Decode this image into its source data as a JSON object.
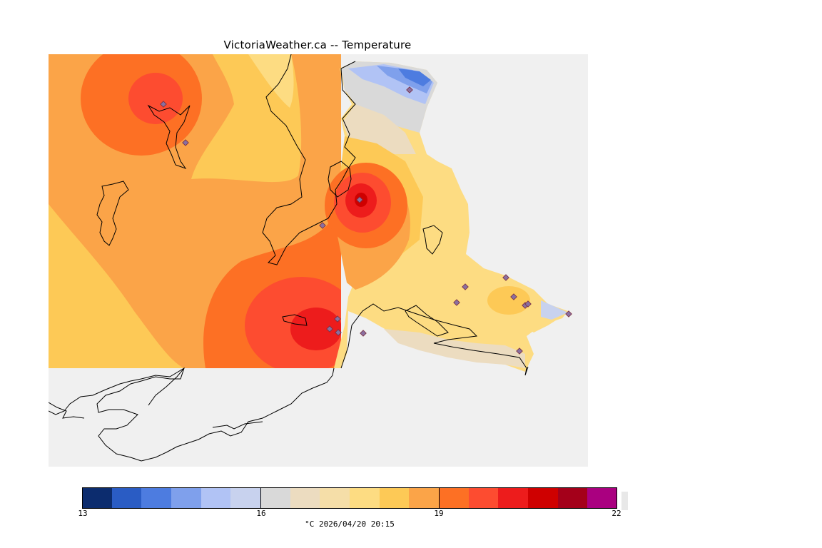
{
  "title": "VictoriaWeather.ca -- Temperature",
  "colorbar": {
    "min": 13,
    "max": 22,
    "tick_labels": [
      "13",
      "16",
      "19",
      "22"
    ],
    "colors": [
      "#0c2c6e",
      "#2a5cc4",
      "#4d7ce0",
      "#7fa0ec",
      "#b1c3f5",
      "#c8d2ee",
      "#d9d9d9",
      "#ecdcc0",
      "#f5dea8",
      "#fddc82",
      "#fdc956",
      "#fba448",
      "#fd7024",
      "#fd4c30",
      "#ed1c1c",
      "#cf0000",
      "#a4001a",
      "#aa0080"
    ]
  },
  "caption": "°C  2026/04/20 20:15",
  "map": {
    "icons": [
      "station-marker-icon"
    ]
  }
}
